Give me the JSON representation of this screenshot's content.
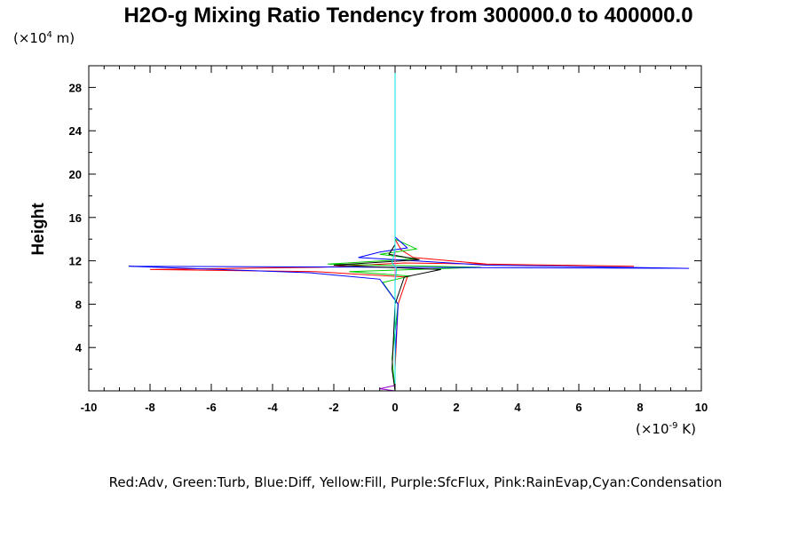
{
  "chart_data": {
    "type": "line",
    "title": "H2O-g Mixing Ratio Tendency from 300000.0 to 400000.0",
    "ylabel": "Height",
    "y_unit": {
      "prefix": "(×10",
      "exp": "4",
      "suffix": " m)"
    },
    "x_unit": {
      "prefix": "(×10",
      "exp": "-9",
      "suffix": " K)"
    },
    "xlim": [
      -10,
      10
    ],
    "ylim": [
      0,
      30
    ],
    "xticks": [
      -10,
      -8,
      -6,
      -4,
      -2,
      0,
      2,
      4,
      6,
      8,
      10
    ],
    "yticks": [
      4,
      8,
      12,
      16,
      20,
      24,
      28
    ],
    "grid": false,
    "legend_text": "Red:Adv, Green:Turb, Blue:Diff, Yellow:Fill, Purple:SfcFlux, Pink:RainEvap,Cyan:Condensation",
    "series": [
      {
        "color": "#ff0000",
        "x": [
          0,
          0,
          0.1,
          0.4,
          -2.6,
          -8.0,
          -2.4,
          0.3,
          7.8,
          3.0,
          0.6,
          0.2,
          0,
          0
        ],
        "y": [
          0,
          2,
          8,
          10.5,
          11.0,
          11.2,
          11.4,
          11.8,
          11.5,
          11.7,
          12.3,
          13.0,
          14,
          30
        ]
      },
      {
        "color": "#00cc00",
        "x": [
          0,
          -0.1,
          0.1,
          -0.4,
          0.5,
          -1.5,
          2.8,
          -2.2,
          0.7,
          -0.5,
          0.7,
          0,
          0
        ],
        "y": [
          0,
          3,
          8,
          10.0,
          10.6,
          11.0,
          11.4,
          11.7,
          12.2,
          12.6,
          13.1,
          14,
          30
        ]
      },
      {
        "color": "#0000ff",
        "x": [
          0,
          0,
          0.1,
          -0.5,
          -2.8,
          -8.7,
          9.6,
          3.0,
          -1.2,
          -0.5,
          0.4,
          0,
          0
        ],
        "y": [
          0,
          3,
          8,
          10.3,
          10.9,
          11.5,
          11.3,
          11.6,
          12.3,
          12.8,
          13.2,
          14.2,
          30
        ]
      },
      {
        "color": "#000000",
        "x": [
          0,
          -0.1,
          0,
          0.3,
          1.5,
          -2.0,
          0.8,
          -0.2,
          0,
          0
        ],
        "y": [
          0,
          2,
          8,
          10.5,
          11.2,
          11.6,
          12.1,
          12.6,
          13.5,
          30
        ]
      },
      {
        "color": "#ffff00",
        "x": [
          0,
          0,
          0
        ],
        "y": [
          0,
          15,
          30
        ]
      },
      {
        "color": "#9900cc",
        "x": [
          0,
          -0.5,
          0,
          0,
          0
        ],
        "y": [
          0,
          0.2,
          0.5,
          15,
          30
        ]
      },
      {
        "color": "#ff66cc",
        "x": [
          0,
          0,
          0
        ],
        "y": [
          0,
          15,
          30
        ]
      },
      {
        "color": "#00e0e0",
        "x": [
          0,
          0,
          0.05,
          -0.1,
          0,
          0
        ],
        "y": [
          0,
          10,
          11.3,
          11.8,
          13,
          30
        ]
      }
    ]
  }
}
